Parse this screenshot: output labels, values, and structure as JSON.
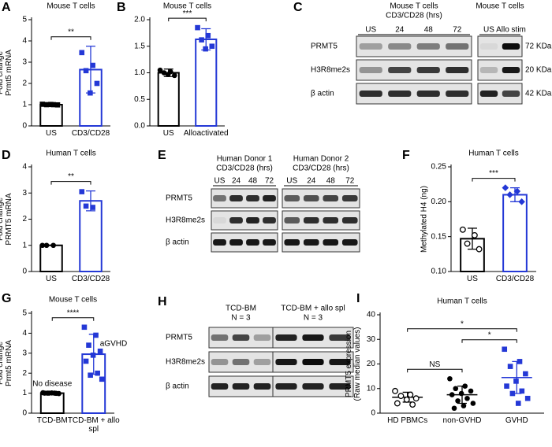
{
  "chart_data": [
    {
      "type": "bar",
      "panel": "A",
      "title": "Mouse T cells",
      "ylabel": [
        "Fold change",
        "Prmt5 mRNA"
      ],
      "categories": [
        "US",
        "CD3/CD28"
      ],
      "colors": [
        "#000000",
        "#2438d6"
      ],
      "markers": [
        "square",
        "square"
      ],
      "values": [
        1.0,
        2.65
      ],
      "errors": [
        0.03,
        1.1
      ],
      "points": [
        [
          1.02,
          1.0,
          1.0,
          0.99,
          1.01
        ],
        [
          3.45,
          2.85,
          2.6,
          2.0,
          1.55
        ]
      ],
      "comparisons": [
        {
          "pair": [
            0,
            1
          ],
          "label": "**"
        }
      ],
      "ylim": [
        0,
        5
      ],
      "yticks": [
        0,
        1,
        2,
        3,
        4,
        5
      ]
    },
    {
      "type": "bar",
      "panel": "B",
      "title": "Mouse T cells",
      "ylabel": [],
      "categories": [
        "US",
        "Alloactivated"
      ],
      "colors": [
        "#000000",
        "#2438d6"
      ],
      "markers": [
        "circle",
        "square"
      ],
      "values": [
        1.0,
        1.63
      ],
      "errors": [
        0.07,
        0.2
      ],
      "points": [
        [
          1.05,
          1.02,
          1.0,
          0.95,
          0.97
        ],
        [
          1.85,
          1.7,
          1.62,
          1.5,
          1.45
        ]
      ],
      "comparisons": [
        {
          "pair": [
            0,
            1
          ],
          "label": "***"
        }
      ],
      "ylim": [
        0,
        2
      ],
      "yticks": [
        {
          "value": 0,
          "label": "0.0"
        },
        0.5,
        {
          "value": 1,
          "label": "1.0"
        },
        1.5,
        {
          "value": 2,
          "label": "2.0"
        }
      ]
    },
    {
      "type": "blot",
      "panel": "C",
      "rows": [
        "PRMT5",
        "H3R8me2s",
        "β actin"
      ],
      "markers": [
        "72 KDa",
        "20 KDa",
        "42 KDa"
      ],
      "blocks": [
        {
          "title": [
            "Mouse T cells",
            "CD3/CD28 (hrs)"
          ],
          "lanes": [
            "US",
            "24",
            "48",
            "72"
          ],
          "bands": [
            [
              0.3,
              0.4,
              0.45,
              0.5
            ],
            [
              0.35,
              0.7,
              0.75,
              0.8
            ],
            [
              0.8,
              0.8,
              0.8,
              0.8
            ]
          ]
        },
        {
          "title": [
            "Mouse T cells"
          ],
          "lanes": [
            "US",
            "Allo stim"
          ],
          "bands": [
            [
              0.05,
              0.95
            ],
            [
              0.2,
              0.9
            ],
            [
              0.85,
              0.7
            ]
          ]
        }
      ]
    },
    {
      "type": "bar",
      "panel": "D",
      "title": "Human T cells",
      "ylabel": [
        "Fold change",
        "PRMT5 mRNA"
      ],
      "categories": [
        "US",
        "CD3/CD28"
      ],
      "colors": [
        "#000000",
        "#2438d6"
      ],
      "markers": [
        "circle",
        "square"
      ],
      "values": [
        1.0,
        2.7
      ],
      "errors": [
        0.0,
        0.38
      ],
      "points": [
        [
          1.0,
          1.0,
          1.0
        ],
        [
          3.05,
          2.45,
          2.5
        ]
      ],
      "comparisons": [
        {
          "pair": [
            0,
            1
          ],
          "label": "**"
        }
      ],
      "ylim": [
        0,
        4
      ],
      "yticks": [
        0,
        1,
        2,
        3,
        4
      ]
    },
    {
      "type": "blot",
      "panel": "E",
      "rows": [
        "PRMT5",
        "H3R8me2s",
        "β actin"
      ],
      "markers": [],
      "blocks": [
        {
          "title": [
            "Human Donor 1",
            "CD3/CD28 (hrs)"
          ],
          "lanes": [
            "US",
            "24",
            "48",
            "72"
          ],
          "bands": [
            [
              0.5,
              0.8,
              0.8,
              0.85
            ],
            [
              0.05,
              0.8,
              0.85,
              0.8
            ],
            [
              0.9,
              0.9,
              0.9,
              0.9
            ]
          ]
        },
        {
          "title": [
            "Human Donor 2",
            "CD3/CD28 (hrs)"
          ],
          "lanes": [
            "US",
            "24",
            "48",
            "72"
          ],
          "bands": [
            [
              0.6,
              0.65,
              0.7,
              0.75
            ],
            [
              0.6,
              0.8,
              0.8,
              0.8
            ],
            [
              0.9,
              0.9,
              0.9,
              0.9
            ]
          ]
        }
      ]
    },
    {
      "type": "bar",
      "panel": "F",
      "title": "Human T cells",
      "ylabel": [
        "Methylated H4 (ng)"
      ],
      "categories": [
        "US",
        "CD3/CD28"
      ],
      "colors": [
        "#000000",
        "#2438d6"
      ],
      "markers": [
        "circle-open",
        "diamond"
      ],
      "values": [
        0.147,
        0.21
      ],
      "errors": [
        0.015,
        0.01
      ],
      "points": [
        [
          0.16,
          0.152,
          0.14,
          0.132
        ],
        [
          0.22,
          0.215,
          0.21,
          0.2
        ]
      ],
      "comparisons": [
        {
          "pair": [
            0,
            1
          ],
          "label": "***"
        }
      ],
      "ylim": [
        0.1,
        0.25
      ],
      "yticks": [
        {
          "value": 0.1,
          "label": "0.10"
        },
        0.15,
        {
          "value": 0.2,
          "label": "0.20"
        },
        0.25
      ]
    },
    {
      "type": "bar",
      "panel": "G",
      "title": "Mouse T cells",
      "ylabel": [
        "Fold change",
        "Prmt5 mRNA"
      ],
      "categories": [
        "TCD-BM",
        "TCD-BM + allo spl"
      ],
      "colors": [
        "#000000",
        "#2438d6"
      ],
      "markers": [
        "circle",
        "square"
      ],
      "values": [
        1.0,
        2.95
      ],
      "errors": [
        0.03,
        1.0
      ],
      "points": [
        [
          1.02,
          1.0,
          1.0,
          0.98,
          1.01,
          1.0,
          0.99,
          1.0
        ],
        [
          4.3,
          3.9,
          3.4,
          3.1,
          2.9,
          2.6,
          2.0,
          1.9,
          1.7
        ]
      ],
      "point_notes": [
        "No disease",
        "aGVHD"
      ],
      "comparisons": [
        {
          "pair": [
            0,
            1
          ],
          "label": "****"
        }
      ],
      "ylim": [
        0,
        5
      ],
      "yticks": [
        0,
        1,
        2,
        3,
        4,
        5
      ]
    },
    {
      "type": "blot",
      "panel": "H",
      "rows": [
        "PRMT5",
        "H3R8me2s",
        "β actin"
      ],
      "markers": [],
      "blocks": [
        {
          "title": [
            "TCD-BM",
            "N = 3"
          ],
          "bands": [
            [
              0.5,
              0.7,
              0.3
            ],
            [
              0.35,
              0.5,
              0.3
            ],
            [
              0.85,
              0.85,
              0.85
            ]
          ]
        },
        {
          "title": [
            "TCD-BM + allo spl",
            "N = 3"
          ],
          "bands": [
            [
              0.85,
              0.9,
              0.75
            ],
            [
              0.9,
              0.95,
              0.9
            ],
            [
              0.85,
              0.85,
              0.85
            ]
          ]
        }
      ]
    },
    {
      "type": "dot",
      "panel": "I",
      "title": "Human T cells",
      "ylabel": [
        "PRMT5 expression",
        "(Raw median values)"
      ],
      "categories": [
        "HD PBMCs",
        "non-GVHD",
        "GVHD"
      ],
      "colors": [
        "#000000",
        "#000000",
        "#2438d6"
      ],
      "markers": [
        "circle-open",
        "circle",
        "square"
      ],
      "values": [
        6.5,
        7.5,
        14.5
      ],
      "errors": [
        2.0,
        3.5,
        6.5
      ],
      "points": [
        [
          9,
          7.5,
          7,
          6,
          5.5,
          4,
          3.5
        ],
        [
          14,
          11,
          10,
          9,
          8,
          7.5,
          6,
          5,
          4,
          3,
          2
        ],
        [
          26,
          21,
          19,
          16,
          13,
          11,
          9,
          8,
          6,
          4
        ]
      ],
      "comparisons": [
        {
          "pair": [
            0,
            1
          ],
          "label": "NS"
        },
        {
          "pair": [
            1,
            2
          ],
          "label": "*"
        },
        {
          "pair": [
            0,
            2
          ],
          "label": "*"
        }
      ],
      "ylim": [
        0,
        40
      ],
      "yticks": [
        0,
        10,
        20,
        30,
        40
      ]
    }
  ]
}
